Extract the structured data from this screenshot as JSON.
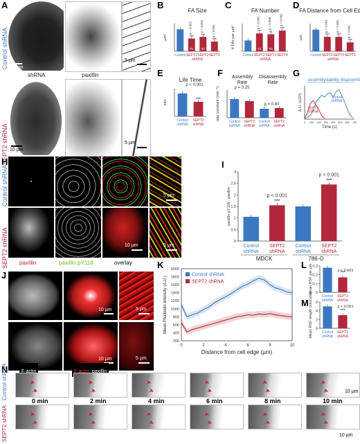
{
  "panels": {
    "A": {
      "label": "A",
      "row1": "Control shRNA",
      "row2": "SEPT2 shRNA",
      "col1": "shRNA",
      "col2": "paxillin",
      "scale1": "10 µm",
      "scale2": "5 µm",
      "scale3": "10 µm",
      "scale4": "5 µm"
    },
    "H": {
      "label": "H",
      "row1": "Control shRNA",
      "row2": "SEPT2 shRNA",
      "col1": "paxillin",
      "col2": "paxillin-pY118",
      "col3": "overlay",
      "scale1": "5 µm",
      "scale2": "10 µm",
      "scale3": "5 µm"
    },
    "J": {
      "label": "J",
      "col1": "F-actin",
      "col2a": "F-actin",
      "col2b": "paxillin",
      "scale1": "10 µm",
      "scale2": "5 µm",
      "scale3": "10 µm",
      "scale4": "5 µm"
    },
    "N": {
      "label": "N",
      "row1": "Control shRNA",
      "row2": "SEPT2 shRNA",
      "times": [
        "0 min",
        "2 min",
        "4 min",
        "6 min",
        "8 min",
        "10 min"
      ],
      "scale1": "10 µm",
      "scale2": "10 µm"
    }
  },
  "chart_data": [
    {
      "id": "B",
      "type": "bar",
      "title": "FA Size",
      "ylabel": "µm²",
      "categories": [
        "Control",
        "SEPT2",
        "SEPT2",
        "SEPT9"
      ],
      "group_label": "shRNA",
      "values": [
        0.95,
        0.55,
        0.62,
        0.42
      ],
      "colors": [
        "#3a78c2",
        "#b0283a",
        "#b0283a",
        "#b0283a"
      ],
      "ylim": [
        0,
        1.2
      ],
      "annotations": [
        "p < 0.001",
        "p < 0.001",
        "p < 0.001"
      ],
      "stars": [
        "***",
        "***",
        "***"
      ],
      "cell_labels": [
        "#1",
        "#2"
      ]
    },
    {
      "id": "C",
      "type": "bar",
      "title": "FA Number",
      "ylabel": "# FAs per µm²",
      "categories": [
        "Control",
        "SEPT2",
        "SEPT2",
        "SEPT9"
      ],
      "group_label": "shRNA",
      "values": [
        0.35,
        0.58,
        0.55,
        0.67
      ],
      "colors": [
        "#3a78c2",
        "#b0283a",
        "#b0283a",
        "#b0283a"
      ],
      "ylim": [
        0,
        0.9
      ],
      "annotations": [
        "p < 0.001",
        "p = 0.006",
        "p < 0.001"
      ],
      "stars": [
        "***",
        "**",
        "***"
      ],
      "cell_labels": [
        "#1",
        "#2"
      ]
    },
    {
      "id": "D",
      "type": "bar",
      "title": "FA Distance from Cell Edge",
      "ylabel": "µm",
      "categories": [
        "Control",
        "SEPT2",
        "SEPT2",
        "SEPT9"
      ],
      "group_label": "shRNA",
      "values": [
        3.9,
        2.6,
        2.6,
        1.6
      ],
      "colors": [
        "#3a78c2",
        "#b0283a",
        "#b0283a",
        "#b0283a"
      ],
      "ylim": [
        0,
        5
      ],
      "annotations": [
        "p < 0.001",
        "p < 0.001",
        "p < 0.001"
      ],
      "stars": [
        "***",
        "***",
        "***"
      ]
    },
    {
      "id": "E",
      "type": "bar",
      "title": "Life Time",
      "ylabel": "min",
      "categories": [
        "Control shRNA",
        "SEPT2 shRNA"
      ],
      "values": [
        3.3,
        2.1
      ],
      "colors": [
        "#3a78c2",
        "#b0283a"
      ],
      "ylim": [
        0,
        4
      ],
      "annotations": [
        "p < 0.001"
      ],
      "stars": [
        "***"
      ]
    },
    {
      "id": "F",
      "type": "bar",
      "ylabel": "rate constant (min⁻¹)",
      "group_titles": [
        "Assembly Rate",
        "Disassembly Rate"
      ],
      "categories": [
        "Control shRNA",
        "SEPT2 shRNA",
        "Control shRNA",
        "SEPT2 shRNA"
      ],
      "values": [
        0.135,
        0.12,
        0.065,
        0.07
      ],
      "colors": [
        "#3a78c2",
        "#b0283a",
        "#3a78c2",
        "#b0283a"
      ],
      "ylim": [
        0,
        0.2
      ],
      "annotations": [
        "p = 0.25",
        "p = 0.80"
      ]
    },
    {
      "id": "G",
      "type": "line",
      "xlabel": "Time (s)",
      "ylabel": "A.U. (x10³)",
      "phases": [
        "assembly",
        "stability",
        "disassembly"
      ],
      "series": [
        {
          "name": "control shRNA",
          "color": "#3a78c2",
          "x": [
            0,
            40,
            80,
            120,
            160,
            200,
            240,
            280,
            320,
            360,
            400,
            440,
            480,
            520,
            560,
            600,
            640,
            680
          ],
          "y": [
            0.2,
            0.5,
            1.2,
            2.6,
            5.1,
            6.3,
            7.2,
            6.6,
            7.6,
            8.0,
            6.7,
            8.1,
            8.9,
            7.2,
            5.2,
            3.0,
            1.2,
            0.3
          ]
        },
        {
          "name": "SEPT2 shRNA",
          "color": "#b0283a",
          "x": [
            0,
            40,
            80,
            120,
            160,
            200,
            240,
            280
          ],
          "y": [
            0.2,
            2.0,
            4.6,
            5.6,
            4.2,
            2.8,
            1.0,
            0.2
          ]
        }
      ],
      "xticks": [
        0,
        100,
        200,
        300,
        400,
        500,
        600,
        700
      ],
      "xlim": [
        0,
        700
      ],
      "ylim": [
        0,
        10
      ]
    },
    {
      "id": "I",
      "type": "bar",
      "ylabel": "paxillin-pY118 : paxillin",
      "groups": [
        "MDCK",
        "786-O"
      ],
      "categories": [
        "Control shRNA",
        "SEPT2 shRNA",
        "Control shRNA",
        "SEPT2 shRNA"
      ],
      "values": [
        1.05,
        1.55,
        1.5,
        2.45
      ],
      "colors": [
        "#3a78c2",
        "#b0283a",
        "#3a78c2",
        "#b0283a"
      ],
      "ylim": [
        0,
        3
      ],
      "yticks": [
        0.0,
        0.5,
        1.0,
        1.5,
        2.0,
        2.5,
        3.0
      ],
      "annotations": [
        "p < 0.001",
        "p < 0.001"
      ],
      "stars": [
        "***",
        "***"
      ]
    },
    {
      "id": "K",
      "type": "line",
      "xlabel": "Distance from cell edge (µm)",
      "ylabel": "Mean Phalloidin Intensity (A.U.)",
      "series": [
        {
          "name": "Control shRNA",
          "color": "#3a78c2",
          "x": [
            0,
            0.5,
            1,
            1.5,
            2,
            2.5,
            3,
            3.5,
            4,
            4.5,
            5,
            5.5,
            6,
            6.5,
            7,
            7.5,
            8,
            8.5,
            9,
            9.5,
            10
          ],
          "y": [
            1100,
            800,
            850,
            900,
            980,
            1050,
            1150,
            1230,
            1300,
            1380,
            1470,
            1560,
            1620,
            1700,
            1760,
            1720,
            1600,
            1520,
            1480,
            1420,
            1400
          ]
        },
        {
          "name": "SEPT2 shRNA",
          "color": "#b0283a",
          "x": [
            0,
            0.5,
            1,
            1.5,
            2,
            2.5,
            3,
            3.5,
            4,
            4.5,
            5,
            5.5,
            6,
            6.5,
            7,
            7.5,
            8,
            8.5,
            9,
            9.5,
            10
          ],
          "y": [
            650,
            420,
            480,
            520,
            560,
            600,
            640,
            680,
            720,
            760,
            800,
            820,
            850,
            840,
            870,
            860,
            880,
            850,
            830,
            810,
            800
          ]
        }
      ],
      "xticks": [
        0,
        2,
        4,
        6,
        8,
        10
      ],
      "yticks": [
        200,
        400,
        600,
        800,
        1000,
        1200,
        1400,
        1600,
        1800,
        2000
      ],
      "xlim": [
        0,
        10
      ],
      "ylim": [
        200,
        2000
      ]
    },
    {
      "id": "L",
      "type": "bar",
      "ylabel": "Mean RSF per µm",
      "categories": [
        "Control shRNA",
        "SEPT2 shRNA"
      ],
      "values": [
        0.28,
        0.17
      ],
      "colors": [
        "#3a78c2",
        "#b0283a"
      ],
      "ylim": [
        0,
        0.3
      ],
      "yticks": [
        0.0,
        0.1,
        0.2,
        0.3
      ],
      "annotations": [
        "p < 0.001"
      ],
      "stars": [
        "***"
      ]
    },
    {
      "id": "M",
      "type": "bar",
      "ylabel": "Mean RSF length (microns)",
      "categories": [
        "Control shRNA",
        "SEPT2 shRNA"
      ],
      "values": [
        5.0,
        3.0
      ],
      "colors": [
        "#3a78c2",
        "#b0283a"
      ],
      "ylim": [
        0,
        6
      ],
      "yticks": [
        0,
        2,
        4,
        6
      ],
      "annotations": [
        "p < 0.001"
      ],
      "stars": [
        "***"
      ]
    }
  ]
}
